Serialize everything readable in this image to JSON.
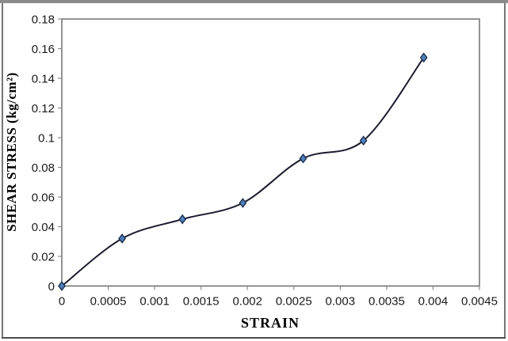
{
  "chart_data": {
    "type": "line",
    "title": "",
    "xlabel": "STRAIN",
    "ylabel": "SHEAR STRESS (kg/cm²)",
    "x": [
      0,
      0.00065,
      0.0013,
      0.00195,
      0.0026,
      0.00325,
      0.0039
    ],
    "y": [
      0,
      0.032,
      0.045,
      0.056,
      0.086,
      0.098,
      0.154
    ],
    "xlim": [
      0,
      0.0045
    ],
    "ylim": [
      0,
      0.18
    ],
    "x_ticks": [
      "0",
      "0.0005",
      "0.001",
      "0.0015",
      "0.002",
      "0.0025",
      "0.003",
      "0.0035",
      "0.004",
      "0.0045"
    ],
    "y_ticks": [
      "0",
      "0.02",
      "0.04",
      "0.06",
      "0.08",
      "0.1",
      "0.12",
      "0.14",
      "0.16",
      "0.18"
    ],
    "grid": false,
    "legend": "none",
    "smooth": true,
    "line_color": "#1b1b2f",
    "marker": "diamond",
    "marker_fill": "#4f81bd",
    "marker_stroke": "#1c2e4a",
    "plot_border_color": "#595959",
    "tick_color": "#8c8c8c"
  },
  "frame": {
    "top_color": "#8a8a8a",
    "side_color": "#757575",
    "bottom_color": "#4a4a4a"
  }
}
